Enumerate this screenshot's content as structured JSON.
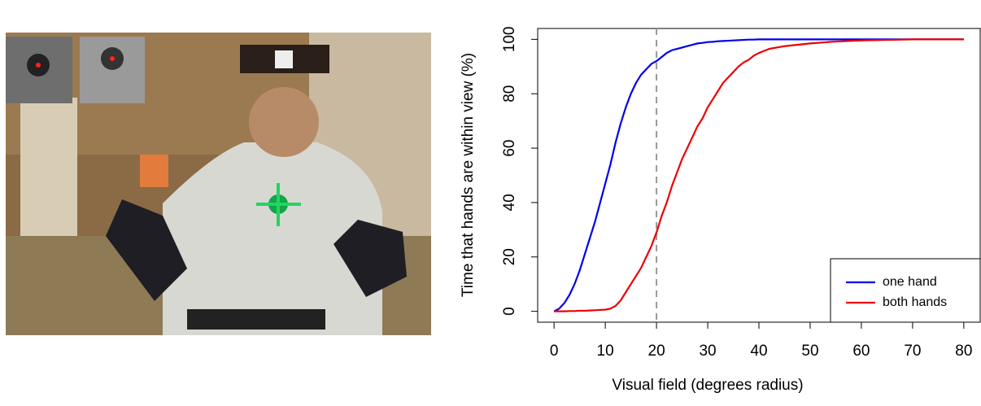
{
  "chart_data": {
    "type": "line",
    "xlabel": "Visual field (degrees radius)",
    "ylabel": "Time that hands are within view (%)",
    "x": [
      0,
      1,
      2,
      3,
      4,
      5,
      6,
      7,
      8,
      9,
      10,
      11,
      12,
      13,
      14,
      15,
      16,
      17,
      18,
      19,
      20,
      21,
      22,
      23,
      24,
      25,
      26,
      27,
      28,
      29,
      30,
      31,
      32,
      33,
      34,
      35,
      36,
      37,
      38,
      39,
      40,
      42,
      45,
      50,
      55,
      60,
      65,
      70,
      75,
      80
    ],
    "series": [
      {
        "name": "one hand",
        "color": "#0000ee",
        "values": [
          0,
          1,
          3,
          6,
          10,
          15,
          21,
          27,
          33,
          40,
          47,
          54,
          62,
          69,
          75,
          80,
          84,
          87,
          89,
          91,
          92,
          93.5,
          95,
          96,
          96.5,
          97,
          97.5,
          98,
          98.5,
          98.7,
          99,
          99.1,
          99.3,
          99.4,
          99.5,
          99.6,
          99.7,
          99.8,
          99.9,
          99.9,
          100,
          100,
          100,
          100,
          100,
          100,
          100,
          100,
          100,
          100
        ]
      },
      {
        "name": "both hands",
        "color": "#ee0000",
        "values": [
          0,
          0,
          0,
          0.1,
          0.1,
          0.2,
          0.2,
          0.3,
          0.4,
          0.5,
          0.6,
          1,
          2,
          4,
          7,
          10,
          13,
          16,
          20,
          24,
          29,
          35,
          40,
          46,
          51,
          56,
          60,
          64,
          68,
          71,
          75,
          78,
          81,
          84,
          86,
          88,
          90,
          91.5,
          92.5,
          94,
          95,
          96.5,
          97.5,
          98.5,
          99.2,
          99.6,
          99.8,
          100,
          100,
          100
        ]
      }
    ],
    "xlim": [
      -3.2,
      83.2
    ],
    "xticks": [
      0,
      10,
      20,
      30,
      40,
      50,
      60,
      70,
      80
    ],
    "ylim": [
      -4,
      104
    ],
    "yticks": [
      0,
      20,
      40,
      60,
      80,
      100
    ],
    "vline": 20,
    "legend": "bottom-right"
  }
}
